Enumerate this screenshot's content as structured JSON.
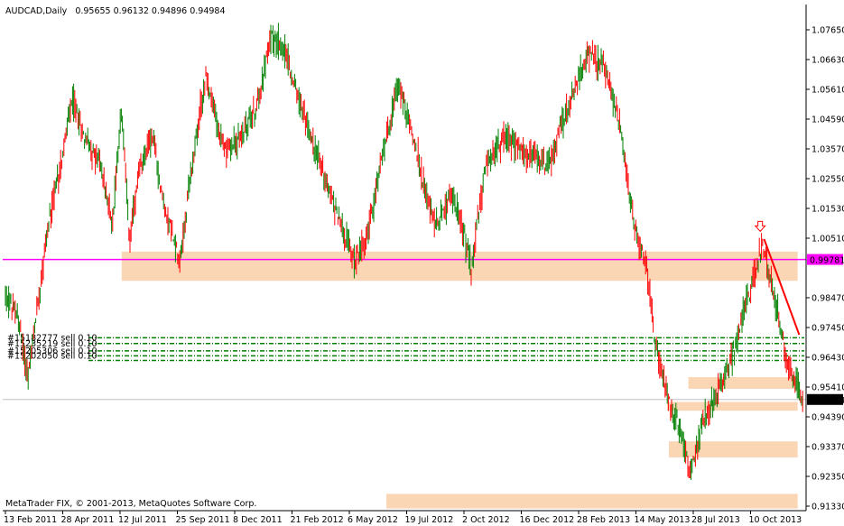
{
  "chart_data": {
    "type": "candlestick",
    "header": {
      "symbol_period": "AUDCAD,Daily",
      "ohlc": "0.95655 0.96132 0.94896 0.94984",
      "open": 0.95655,
      "high": 0.96132,
      "low": 0.94896,
      "close": 0.94984
    },
    "copyright": "MetaTrader FIX, © 2001-2013, MetaQuotes Software Corp.",
    "y_range": [
      0.91,
      1.085
    ],
    "y_ticks": [
      "1.07650",
      "1.06630",
      "1.05610",
      "1.04590",
      "1.03570",
      "1.02550",
      "1.01530",
      "1.00510",
      "0.98470",
      "0.97450",
      "0.96430",
      "0.95410",
      "0.94390",
      "0.93370",
      "0.92350",
      "0.91330"
    ],
    "x_ticks": [
      "13 Feb 2011",
      "28 Apr 2011",
      "12 Jul 2011",
      "25 Sep 2011",
      "8 Dec 2011",
      "21 Feb 2012",
      "6 May 2012",
      "19 Jul 2012",
      "2 Oct 2012",
      "16 Dec 2012",
      "28 Feb 2013",
      "14 May 2013",
      "28 Jul 2013",
      "10 Oct 2013"
    ],
    "price_path": [
      {
        "date": "2011-02-13",
        "price": 0.985
      },
      {
        "date": "2011-03-01",
        "price": 0.978
      },
      {
        "date": "2011-03-14",
        "price": 0.957
      },
      {
        "date": "2011-03-25",
        "price": 0.98
      },
      {
        "date": "2011-04-08",
        "price": 1.008
      },
      {
        "date": "2011-04-28",
        "price": 1.035
      },
      {
        "date": "2011-05-10",
        "price": 1.052
      },
      {
        "date": "2011-05-25",
        "price": 1.04
      },
      {
        "date": "2011-06-15",
        "price": 1.03
      },
      {
        "date": "2011-06-30",
        "price": 1.01
      },
      {
        "date": "2011-07-12",
        "price": 1.05
      },
      {
        "date": "2011-07-22",
        "price": 1.005
      },
      {
        "date": "2011-08-05",
        "price": 1.03
      },
      {
        "date": "2011-08-20",
        "price": 1.04
      },
      {
        "date": "2011-09-05",
        "price": 1.015
      },
      {
        "date": "2011-09-25",
        "price": 0.998
      },
      {
        "date": "2011-10-15",
        "price": 1.04
      },
      {
        "date": "2011-10-28",
        "price": 1.06
      },
      {
        "date": "2011-11-20",
        "price": 1.035
      },
      {
        "date": "2011-12-08",
        "price": 1.038
      },
      {
        "date": "2012-01-01",
        "price": 1.05
      },
      {
        "date": "2012-01-20",
        "price": 1.075
      },
      {
        "date": "2012-02-05",
        "price": 1.07
      },
      {
        "date": "2012-02-21",
        "price": 1.055
      },
      {
        "date": "2012-03-10",
        "price": 1.04
      },
      {
        "date": "2012-04-05",
        "price": 1.02
      },
      {
        "date": "2012-05-06",
        "price": 0.996
      },
      {
        "date": "2012-05-25",
        "price": 1.01
      },
      {
        "date": "2012-06-15",
        "price": 1.04
      },
      {
        "date": "2012-07-01",
        "price": 1.058
      },
      {
        "date": "2012-07-19",
        "price": 1.04
      },
      {
        "date": "2012-08-15",
        "price": 1.01
      },
      {
        "date": "2012-09-10",
        "price": 1.02
      },
      {
        "date": "2012-10-02",
        "price": 0.995
      },
      {
        "date": "2012-10-20",
        "price": 1.03
      },
      {
        "date": "2012-11-15",
        "price": 1.04
      },
      {
        "date": "2012-12-16",
        "price": 1.033
      },
      {
        "date": "2013-01-10",
        "price": 1.03
      },
      {
        "date": "2013-01-31",
        "price": 1.048
      },
      {
        "date": "2013-02-28",
        "price": 1.068
      },
      {
        "date": "2013-03-20",
        "price": 1.064
      },
      {
        "date": "2013-04-10",
        "price": 1.045
      },
      {
        "date": "2013-04-28",
        "price": 1.01
      },
      {
        "date": "2013-05-14",
        "price": 0.996
      },
      {
        "date": "2013-05-25",
        "price": 0.97
      },
      {
        "date": "2013-06-10",
        "price": 0.952
      },
      {
        "date": "2013-06-25",
        "price": 0.94
      },
      {
        "date": "2013-07-10",
        "price": 0.925
      },
      {
        "date": "2013-07-28",
        "price": 0.945
      },
      {
        "date": "2013-08-15",
        "price": 0.952
      },
      {
        "date": "2013-09-05",
        "price": 0.968
      },
      {
        "date": "2013-09-25",
        "price": 0.988
      },
      {
        "date": "2013-10-10",
        "price": 1.003
      },
      {
        "date": "2013-10-25",
        "price": 0.985
      },
      {
        "date": "2013-11-10",
        "price": 0.963
      },
      {
        "date": "2013-11-22",
        "price": 0.955
      },
      {
        "date": "2013-12-01",
        "price": 0.95
      }
    ],
    "zones": [
      {
        "from": "2011-07-12",
        "to": "2013-11-24",
        "y_from": 0.9905,
        "y_to": 1.0005,
        "color": "#fbd6b5"
      },
      {
        "from": "2013-07-07",
        "to": "2013-11-24",
        "y_from": 0.9535,
        "y_to": 0.9575,
        "color": "#fbd6b5"
      },
      {
        "from": "2013-06-10",
        "to": "2013-11-24",
        "y_from": 0.946,
        "y_to": 0.949,
        "color": "#fbd6b5"
      },
      {
        "from": "2013-06-12",
        "to": "2013-11-24",
        "y_from": 0.93,
        "y_to": 0.9355,
        "color": "#fbd6b5"
      },
      {
        "from": "2012-06-15",
        "to": "2013-11-24",
        "y_from": 0.9125,
        "y_to": 0.9175,
        "color": "#fbd6b5"
      }
    ],
    "magenta_line": {
      "value": 0.99781,
      "label": "0.99781",
      "color": "#ff00ff"
    },
    "close_line": {
      "value": 0.94984,
      "label": "0.94984",
      "color": "#c0c0c0"
    },
    "orders": [
      {
        "label": "#15182777 sell 0.10",
        "price": 0.971
      },
      {
        "label": "#15235219 sell 0.10",
        "price": 0.969
      },
      {
        "label": "#15205306 sell 0.10",
        "price": 0.9665
      },
      {
        "label": "#15202050 sell 0.10",
        "price": 0.9648
      },
      {
        "label": "",
        "price": 0.9632
      }
    ],
    "trendline": {
      "from": {
        "date": "2013-10-12",
        "price": 1.0048
      },
      "to": {
        "date": "2013-11-26",
        "price": 0.972
      },
      "color": "#ff0000"
    },
    "arrow": {
      "date": "2013-10-07",
      "price": 1.009,
      "icon": "down-arrow-icon",
      "color": "#ff0000"
    },
    "colors": {
      "bull": "#008000",
      "bear": "#ff0000",
      "order_line": "#008000"
    }
  }
}
